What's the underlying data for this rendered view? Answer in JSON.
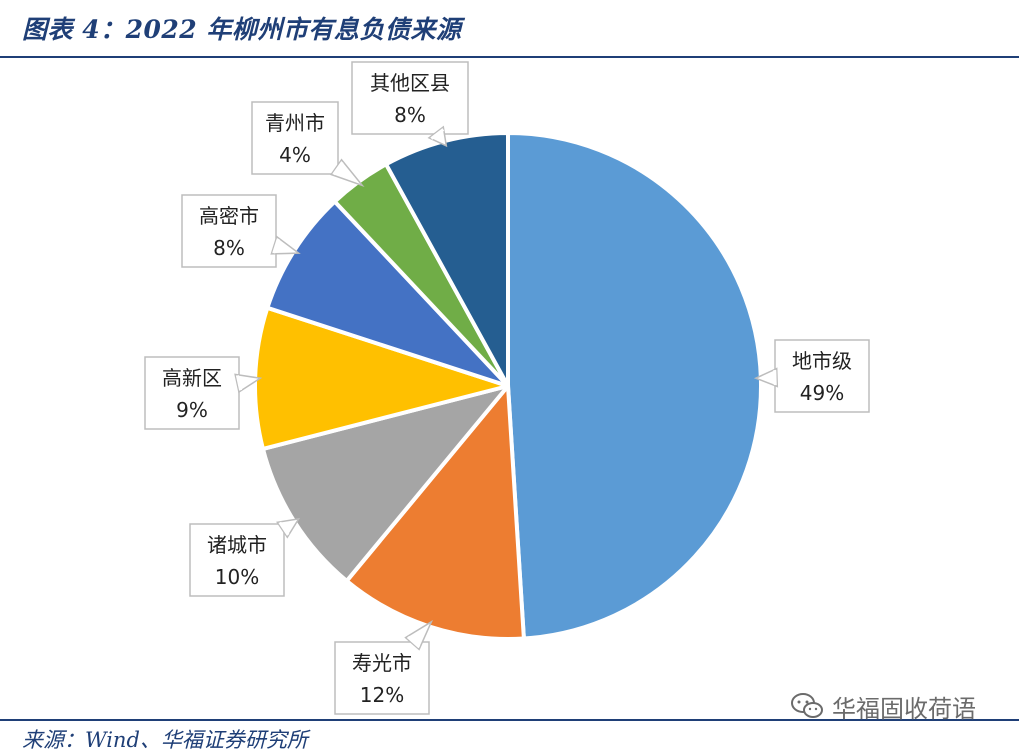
{
  "header": {
    "title": "图表 4：2022 年柳州市有息负债来源"
  },
  "footer": {
    "source": "来源：Wind、华福证券研究所"
  },
  "watermark": {
    "text": "华福固收荷语",
    "icon": "wechat-icon"
  },
  "chart_data": {
    "type": "pie",
    "title": "",
    "start_angle_deg": 0,
    "direction": "clockwise",
    "slices": [
      {
        "label": "地市级",
        "value": 49,
        "display": "49%",
        "color": "#5b9bd5"
      },
      {
        "label": "寿光市",
        "value": 12,
        "display": "12%",
        "color": "#ed7d31"
      },
      {
        "label": "诸城市",
        "value": 10,
        "display": "10%",
        "color": "#a5a5a5"
      },
      {
        "label": "高新区",
        "value": 9,
        "display": "9%",
        "color": "#ffc000"
      },
      {
        "label": "高密市",
        "value": 8,
        "display": "8%",
        "color": "#4472c4"
      },
      {
        "label": "青州市",
        "value": 4,
        "display": "4%",
        "color": "#70ad47"
      },
      {
        "label": "其他区县",
        "value": 8,
        "display": "8%",
        "color": "#255e91"
      }
    ]
  }
}
